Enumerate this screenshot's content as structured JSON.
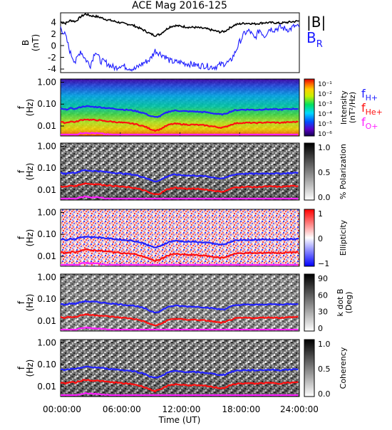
{
  "title": "ACE Mag 2016-125",
  "colors": {
    "btotal": "#000000",
    "br": "#1a1aff",
    "fh": "#2222ff",
    "fhe": "#ff1010",
    "fo": "#ff20ff"
  },
  "legend": {
    "btotal": "|B|",
    "br_main": "B",
    "br_sub": "R",
    "fh_main": "f",
    "fh_sub": "H+",
    "fhe_main": "f",
    "fhe_sub": "He+",
    "fo_main": "f",
    "fo_sub": "O+"
  },
  "chart_data": [
    {
      "type": "line",
      "title": "ACE Mag 2016-125",
      "ylabel_main": "B",
      "ylabel_unit": "(nT)",
      "ylim": [
        -4.8,
        5.5
      ],
      "yticks": [
        "4",
        "2",
        "0",
        "-2",
        "-4"
      ],
      "x_hours": [
        0,
        0.5,
        1,
        1.5,
        2,
        2.5,
        3,
        3.5,
        4,
        4.5,
        5,
        5.5,
        6,
        6.5,
        7,
        7.5,
        8,
        8.5,
        9,
        9.5,
        10,
        10.5,
        11,
        11.5,
        12,
        12.5,
        13,
        13.5,
        14,
        14.5,
        15,
        15.5,
        16,
        16.5,
        17,
        17.5,
        18,
        18.5,
        19,
        19.5,
        20,
        20.5,
        21,
        21.5,
        22,
        22.5,
        23,
        23.5,
        24
      ],
      "series": [
        {
          "name": "|B|",
          "color": "#000000",
          "values": [
            3.9,
            3.7,
            4.2,
            4.0,
            4.8,
            5.3,
            5.0,
            4.9,
            4.7,
            4.4,
            4.2,
            4.0,
            3.8,
            3.6,
            3.5,
            3.2,
            2.8,
            2.4,
            1.9,
            1.6,
            1.8,
            2.5,
            3.1,
            3.3,
            3.2,
            3.1,
            3.0,
            3.0,
            2.9,
            2.8,
            2.6,
            2.4,
            2.2,
            2.3,
            2.9,
            3.4,
            3.6,
            3.7,
            3.7,
            3.6,
            3.7,
            3.8,
            3.8,
            3.8,
            3.7,
            3.8,
            3.9,
            4.0,
            4.1
          ]
        },
        {
          "name": "B",
          "color": "#1a1aff",
          "values": [
            3.0,
            1.5,
            -1.5,
            -3.0,
            -1.0,
            -2.5,
            -3.5,
            -1.0,
            -2.8,
            -3.0,
            -3.6,
            -4.0,
            -3.5,
            -3.8,
            -4.0,
            -4.2,
            -3.5,
            -3.0,
            -2.5,
            -1.0,
            -1.5,
            -2.0,
            -2.8,
            -3.0,
            -3.0,
            -3.2,
            -3.3,
            -3.5,
            -3.6,
            -3.6,
            -3.8,
            -3.8,
            -3.5,
            -3.2,
            -3.0,
            -1.5,
            0.5,
            2.0,
            2.4,
            1.0,
            2.6,
            1.5,
            2.8,
            2.6,
            3.0,
            2.8,
            2.6,
            3.2,
            3.0
          ]
        }
      ]
    },
    {
      "type": "heatmap",
      "ylabel": "f (Hz)",
      "scale": "log",
      "yticks": [
        "1.00",
        "0.10",
        "0.01"
      ],
      "colorbar_label": "Intensity (nT²/Hz)",
      "colorbar_label_a": "Intensity",
      "colorbar_label_b": "(nT",
      "colorbar_label_c": "/Hz)",
      "colorbar_ticks": [
        "10⁻¹",
        "10⁻²",
        "10⁻³",
        "10⁻⁴",
        "10⁻⁵",
        "10⁻⁶"
      ]
    },
    {
      "type": "heatmap",
      "ylabel": "f (Hz)",
      "yticks": [
        "1.00",
        "0.10",
        "0.01"
      ],
      "colorbar_label": "% Polarization",
      "colorbar_ticks": [
        "1.0",
        "0.5",
        "0.0"
      ]
    },
    {
      "type": "heatmap",
      "ylabel": "f (Hz)",
      "yticks": [
        "1.00",
        "0.10",
        "0.01"
      ],
      "colorbar_label": "Ellipticity",
      "colorbar_ticks": [
        "1",
        "0",
        "−1"
      ]
    },
    {
      "type": "heatmap",
      "ylabel": "f (Hz)",
      "yticks": [
        "1.00",
        "0.10",
        "0.01"
      ],
      "colorbar_label": "k dot B (Deg)",
      "colorbar_label_a": "k dot B",
      "colorbar_label_b": "(Deg)",
      "colorbar_ticks": [
        "90",
        "60",
        "30",
        "0"
      ]
    },
    {
      "type": "heatmap",
      "ylabel": "f (Hz)",
      "yticks": [
        "1.00",
        "0.10",
        "0.01"
      ],
      "colorbar_label": "Coherency",
      "colorbar_ticks": [
        "1.0",
        "0.5",
        "0.0"
      ]
    }
  ],
  "gyro_lines": {
    "x_hours": [
      0,
      0.5,
      1,
      1.5,
      2,
      2.5,
      3,
      3.5,
      4,
      4.5,
      5,
      5.5,
      6,
      6.5,
      7,
      7.5,
      8,
      8.5,
      9,
      9.5,
      10,
      10.5,
      11,
      11.5,
      12,
      12.5,
      13,
      13.5,
      14,
      14.5,
      15,
      15.5,
      16,
      16.5,
      17,
      17.5,
      18,
      18.5,
      19,
      19.5,
      20,
      20.5,
      21,
      21.5,
      22,
      22.5,
      23,
      23.5,
      24
    ],
    "fh_hz": [
      0.06,
      0.056,
      0.064,
      0.061,
      0.073,
      0.081,
      0.076,
      0.075,
      0.072,
      0.067,
      0.064,
      0.061,
      0.058,
      0.055,
      0.053,
      0.049,
      0.043,
      0.037,
      0.029,
      0.025,
      0.028,
      0.038,
      0.047,
      0.051,
      0.049,
      0.047,
      0.046,
      0.046,
      0.044,
      0.043,
      0.04,
      0.037,
      0.034,
      0.035,
      0.044,
      0.052,
      0.055,
      0.056,
      0.056,
      0.055,
      0.056,
      0.058,
      0.058,
      0.058,
      0.056,
      0.058,
      0.06,
      0.061,
      0.063
    ]
  },
  "xaxis": {
    "ticks": [
      "00:00:00",
      "06:00:00",
      "12:00:00",
      "18:00:00",
      "24:00:00"
    ],
    "label": "Time (UT)"
  }
}
